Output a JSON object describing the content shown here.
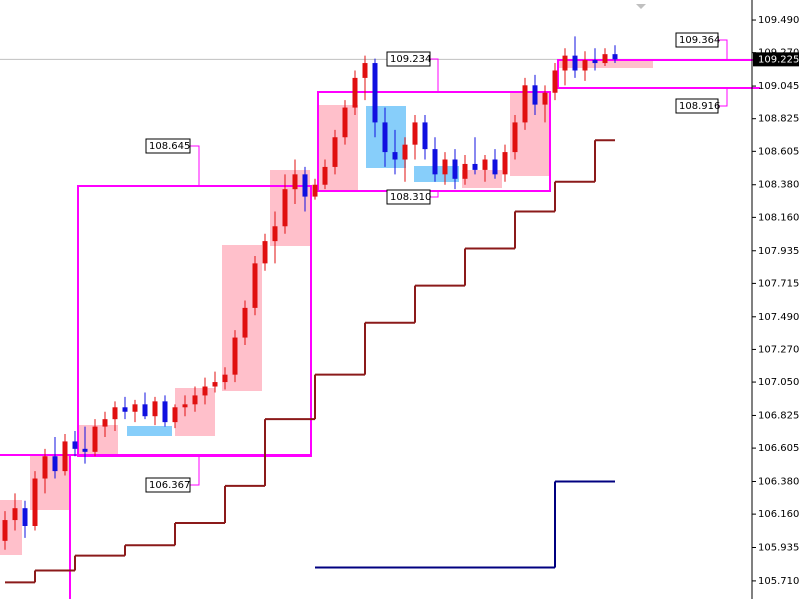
{
  "chart_data": {
    "type": "candlestick",
    "ylim": [
      105.588,
      109.625
    ],
    "yticks": [
      {
        "value": 109.49,
        "label": "109.490"
      },
      {
        "value": 109.27,
        "label": "109.270"
      },
      109.045,
      108.825,
      108.605,
      {
        "value": 108.38,
        "label": "108.380"
      },
      {
        "value": 108.16,
        "label": "108.160"
      },
      107.935,
      107.715,
      {
        "value": 107.49,
        "label": "107.490"
      },
      {
        "value": 107.27,
        "label": "107.270"
      },
      {
        "value": 107.05,
        "label": "107.050"
      },
      106.825,
      106.605,
      {
        "value": 106.38,
        "label": "106.380"
      },
      {
        "value": 106.16,
        "label": "106.160"
      },
      105.935,
      {
        "value": 105.71,
        "label": "105.710"
      }
    ],
    "up_color": "#e01010",
    "down_color": "#1010e0",
    "open": [
      105.98,
      106.12,
      106.2,
      106.08,
      106.4,
      106.55,
      106.45,
      106.65,
      106.6,
      106.58,
      106.75,
      106.8,
      106.88,
      106.85,
      106.9,
      106.82,
      106.92,
      106.78,
      106.88,
      106.9,
      106.96,
      107.02,
      107.05,
      107.1,
      107.35,
      107.55,
      107.85,
      108.0,
      108.1,
      108.35,
      108.45,
      108.3,
      108.38,
      108.5,
      108.7,
      108.9,
      109.1,
      109.2,
      108.8,
      108.6,
      108.55,
      108.65,
      108.8,
      108.62,
      108.45,
      108.55,
      108.42,
      108.52,
      108.48,
      108.55,
      108.45,
      108.6,
      108.8,
      109.05,
      108.92,
      109.0,
      109.15,
      109.25,
      109.15,
      109.22,
      109.2,
      109.26
    ],
    "high": [
      106.18,
      106.3,
      106.25,
      106.45,
      106.6,
      106.68,
      106.7,
      106.72,
      106.75,
      106.8,
      106.85,
      106.92,
      106.95,
      106.93,
      106.98,
      106.95,
      106.96,
      106.9,
      106.96,
      107.02,
      107.08,
      107.12,
      107.15,
      107.4,
      107.6,
      107.9,
      108.05,
      108.2,
      108.45,
      108.55,
      108.5,
      108.42,
      108.55,
      108.75,
      108.95,
      109.15,
      109.25,
      109.23,
      108.9,
      108.75,
      108.7,
      108.85,
      108.85,
      108.7,
      108.6,
      108.62,
      108.58,
      108.7,
      108.58,
      108.62,
      108.65,
      108.85,
      109.1,
      109.12,
      109.05,
      109.2,
      109.3,
      109.38,
      109.28,
      109.3,
      109.3,
      109.32
    ],
    "low": [
      105.92,
      106.05,
      106.0,
      106.05,
      106.3,
      106.4,
      106.42,
      106.55,
      106.5,
      106.55,
      106.68,
      106.72,
      106.8,
      106.78,
      106.8,
      106.76,
      106.75,
      106.74,
      106.82,
      106.85,
      106.9,
      106.98,
      107.0,
      107.05,
      107.3,
      107.5,
      107.8,
      107.85,
      108.05,
      108.25,
      108.2,
      108.28,
      108.35,
      108.45,
      108.65,
      108.85,
      108.95,
      108.7,
      108.5,
      108.45,
      108.4,
      108.55,
      108.55,
      108.4,
      108.38,
      108.35,
      108.38,
      108.45,
      108.4,
      108.42,
      108.4,
      108.55,
      108.75,
      108.85,
      108.8,
      108.95,
      109.05,
      109.1,
      109.08,
      109.15,
      109.18,
      109.2
    ],
    "close": [
      106.12,
      106.2,
      106.08,
      106.4,
      106.55,
      106.45,
      106.65,
      106.6,
      106.58,
      106.75,
      106.8,
      106.88,
      106.85,
      106.9,
      106.82,
      106.92,
      106.78,
      106.88,
      106.9,
      106.96,
      107.02,
      107.05,
      107.1,
      107.35,
      107.55,
      107.85,
      108.0,
      108.1,
      108.35,
      108.45,
      108.3,
      108.38,
      108.5,
      108.7,
      108.9,
      109.1,
      109.2,
      108.8,
      108.6,
      108.55,
      108.65,
      108.8,
      108.62,
      108.45,
      108.55,
      108.42,
      108.52,
      108.48,
      108.55,
      108.45,
      108.6,
      108.8,
      109.05,
      108.92,
      109.0,
      109.15,
      109.25,
      109.15,
      109.22,
      109.2,
      109.26,
      109.225
    ],
    "series": [
      {
        "color": "#8b1a1a",
        "x": [
          0,
          3,
          7,
          12,
          17,
          22,
          26,
          31,
          36,
          41,
          46,
          51,
          55,
          59,
          61
        ],
        "values": [
          105.7,
          105.78,
          105.88,
          105.95,
          106.1,
          106.35,
          106.8,
          107.1,
          107.45,
          107.7,
          107.95,
          108.2,
          108.4,
          108.68,
          108.68
        ]
      },
      {
        "color": "#000080",
        "x": [
          31,
          55,
          61
        ],
        "values": [
          105.8,
          106.38,
          106.38
        ]
      }
    ],
    "last_price": 109.225,
    "annotations": [
      "109.364",
      "109.234",
      "108.916",
      "108.645",
      "108.310",
      "106.367"
    ]
  }
}
